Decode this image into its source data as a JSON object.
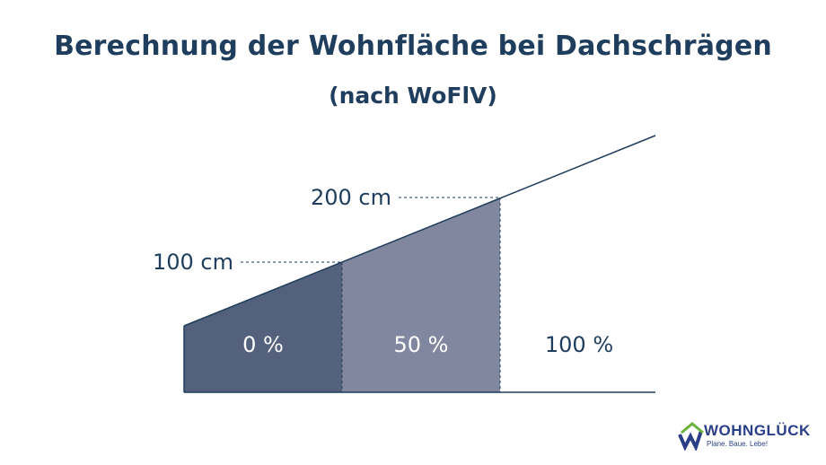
{
  "title": "Berechnung der Wohnfläche bei Dachschrägen",
  "subtitle": "(nach WoFlV)",
  "heights": {
    "first": "100 cm",
    "second": "200 cm"
  },
  "zones": [
    {
      "label": "0 %",
      "color": "#54617d"
    },
    {
      "label": "50 %",
      "color": "#81879f"
    },
    {
      "label": "100 %",
      "color": "#ffffff"
    }
  ],
  "colors": {
    "text": "#1f3d5c",
    "line": "#1f3d5c",
    "logo": "#2a3f88",
    "logo_accent": "#6bb33a"
  },
  "logo": {
    "name": "WOHNGLÜCK",
    "tagline": "Plane. Baue. Lebe!"
  }
}
